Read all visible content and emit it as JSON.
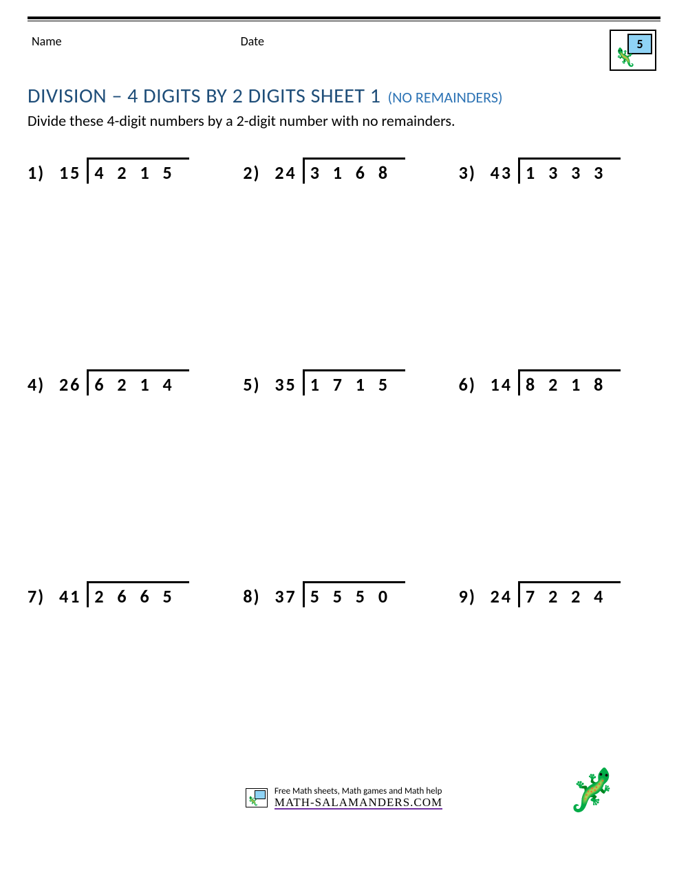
{
  "header": {
    "name_label": "Name",
    "date_label": "Date",
    "grade_number": "5"
  },
  "title": {
    "main": "DIVISION – 4 DIGITS BY 2 DIGITS SHEET 1",
    "sub": "(NO REMAINDERS)"
  },
  "instructions": "Divide these 4-digit numbers by a 2-digit number with no remainders.",
  "problems": [
    {
      "n": "1)",
      "divisor": "15",
      "dividend": "4 2 1 5"
    },
    {
      "n": "2)",
      "divisor": "24",
      "dividend": "3 1 6 8"
    },
    {
      "n": "3)",
      "divisor": "43",
      "dividend": "1 3 3 3"
    },
    {
      "n": "4)",
      "divisor": "26",
      "dividend": "6 2 1 4"
    },
    {
      "n": "5)",
      "divisor": "35",
      "dividend": "1 7 1 5"
    },
    {
      "n": "6)",
      "divisor": "14",
      "dividend": "8 2 1 8"
    },
    {
      "n": "7)",
      "divisor": "41",
      "dividend": "2 6 6 5"
    },
    {
      "n": "8)",
      "divisor": "37",
      "dividend": "5 5 5 0"
    },
    {
      "n": "9)",
      "divisor": "24",
      "dividend": "7 2 2 4"
    }
  ],
  "footer": {
    "tagline": "Free Math sheets, Math games and Math help",
    "site": "MATH-SALAMANDERS.COM"
  },
  "colors": {
    "title": "#1f4e79",
    "subtitle": "#2e74b5",
    "underline": "#7030a0",
    "badge_board": "#8fd3f5"
  }
}
